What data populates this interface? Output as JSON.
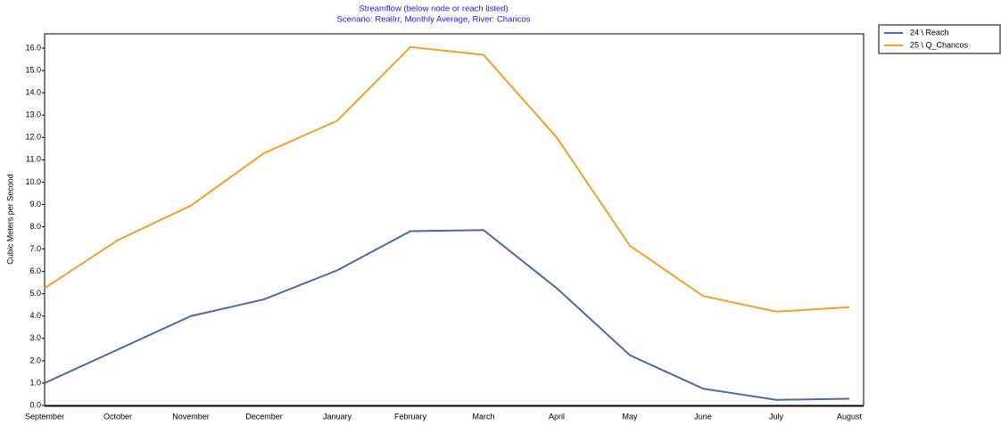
{
  "chart_data": {
    "type": "line",
    "title": "Streamflow (below node or reach listed)",
    "subtitle": "Scenario: RealIrr,  Monthly Average,  River: Chancos",
    "y_label": "Cubic Meters per Second",
    "categories": [
      "September",
      "October",
      "November",
      "December",
      "January",
      "February",
      "March",
      "April",
      "May",
      "June",
      "July",
      "August"
    ],
    "series": [
      {
        "name": "24 \\ Reach",
        "color": "#4a6aa5",
        "values": [
          1.0,
          2.5,
          4.0,
          4.75,
          6.05,
          7.8,
          7.85,
          5.25,
          2.25,
          0.75,
          0.25,
          0.3
        ]
      },
      {
        "name": "25 \\ Q_Chancos",
        "color": "#f0a030",
        "values": [
          5.25,
          7.4,
          8.95,
          11.3,
          12.75,
          16.05,
          15.7,
          12.0,
          7.15,
          4.9,
          4.2,
          4.4
        ]
      }
    ],
    "ylim": [
      0,
      16.64
    ],
    "yticks": [
      {
        "value": 0,
        "label": "0.0"
      },
      {
        "value": 1,
        "label": "1.0"
      },
      {
        "value": 2,
        "label": "2.0"
      },
      {
        "value": 3,
        "label": "3.0"
      },
      {
        "value": 4,
        "label": "4.0"
      },
      {
        "value": 5,
        "label": "5.0"
      },
      {
        "value": 6,
        "label": "6.0"
      },
      {
        "value": 7,
        "label": "7.0"
      },
      {
        "value": 8,
        "label": "8.0"
      },
      {
        "value": 9,
        "label": "9.0"
      },
      {
        "value": 10,
        "label": "10.0"
      },
      {
        "value": 11,
        "label": "11.0"
      },
      {
        "value": 12,
        "label": "12.0"
      },
      {
        "value": 13,
        "label": "13.0"
      },
      {
        "value": 14,
        "label": "14.0"
      },
      {
        "value": 15,
        "label": "15.0"
      },
      {
        "value": 16,
        "label": "16.0"
      }
    ],
    "grid": false,
    "legend": "right"
  }
}
